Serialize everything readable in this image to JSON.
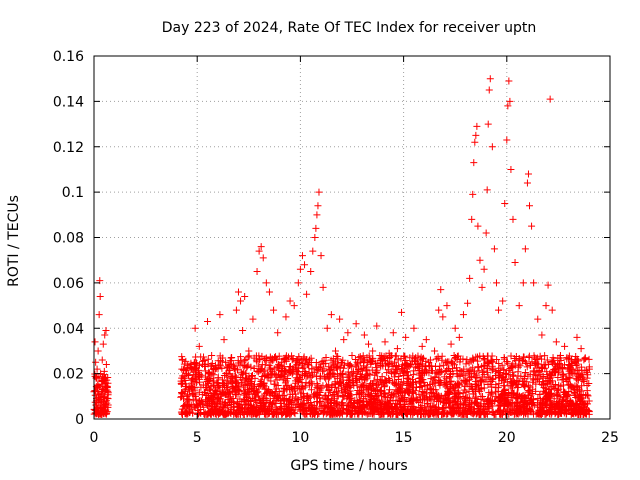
{
  "chart_data": {
    "type": "scatter",
    "title": "Day 223 of 2024, Rate Of TEC Index for receiver uptn",
    "xlabel": "GPS time / hours",
    "ylabel": "ROTI / TECUs",
    "xlim": [
      0,
      25
    ],
    "ylim": [
      0,
      0.16
    ],
    "xticks": [
      0,
      5,
      10,
      15,
      20,
      25
    ],
    "yticks": [
      0,
      0.02,
      0.04,
      0.06,
      0.08,
      0.1,
      0.12,
      0.14,
      0.16
    ],
    "xtick_labels": [
      "0",
      "5",
      "10",
      "15",
      "20",
      "25"
    ],
    "ytick_labels": [
      "0",
      "0.02",
      "0.04",
      "0.06",
      "0.08",
      "0.1",
      "0.12",
      "0.14",
      "0.16"
    ],
    "grid": true,
    "marker": "+",
    "marker_color": "#ff0000",
    "series": [
      {
        "name": "ROTI",
        "points": [
          [
            0.0,
            0.012
          ],
          [
            0.05,
            0.034
          ],
          [
            0.08,
            0.025
          ],
          [
            0.1,
            0.018
          ],
          [
            0.12,
            0.009
          ],
          [
            0.15,
            0.022
          ],
          [
            0.18,
            0.015
          ],
          [
            0.2,
            0.03
          ],
          [
            0.22,
            0.011
          ],
          [
            0.25,
            0.046
          ],
          [
            0.28,
            0.061
          ],
          [
            0.3,
            0.054
          ],
          [
            0.32,
            0.02
          ],
          [
            0.35,
            0.008
          ],
          [
            0.38,
            0.017
          ],
          [
            0.4,
            0.026
          ],
          [
            0.42,
            0.013
          ],
          [
            0.45,
            0.033
          ],
          [
            0.48,
            0.01
          ],
          [
            0.5,
            0.021
          ],
          [
            0.52,
            0.037
          ],
          [
            0.55,
            0.016
          ],
          [
            0.58,
            0.039
          ],
          [
            0.6,
            0.024
          ],
          [
            0.62,
            0.007
          ],
          [
            0.65,
            0.014
          ],
          [
            0.68,
            0.009
          ],
          [
            4.3,
            0.019
          ],
          [
            4.5,
            0.008
          ],
          [
            4.7,
            0.024
          ],
          [
            4.9,
            0.04
          ],
          [
            5.1,
            0.032
          ],
          [
            5.3,
            0.015
          ],
          [
            5.5,
            0.043
          ],
          [
            5.7,
            0.028
          ],
          [
            5.9,
            0.012
          ],
          [
            6.1,
            0.046
          ],
          [
            6.3,
            0.035
          ],
          [
            6.5,
            0.02
          ],
          [
            6.7,
            0.014
          ],
          [
            6.9,
            0.048
          ],
          [
            7.0,
            0.056
          ],
          [
            7.1,
            0.052
          ],
          [
            7.2,
            0.039
          ],
          [
            7.3,
            0.054
          ],
          [
            7.5,
            0.03
          ],
          [
            7.7,
            0.044
          ],
          [
            7.9,
            0.065
          ],
          [
            8.0,
            0.074
          ],
          [
            8.1,
            0.076
          ],
          [
            8.2,
            0.071
          ],
          [
            8.35,
            0.06
          ],
          [
            8.5,
            0.056
          ],
          [
            8.7,
            0.048
          ],
          [
            8.9,
            0.038
          ],
          [
            9.1,
            0.025
          ],
          [
            9.3,
            0.045
          ],
          [
            9.5,
            0.052
          ],
          [
            9.7,
            0.05
          ],
          [
            9.9,
            0.06
          ],
          [
            10.0,
            0.066
          ],
          [
            10.1,
            0.072
          ],
          [
            10.2,
            0.068
          ],
          [
            10.3,
            0.055
          ],
          [
            10.5,
            0.065
          ],
          [
            10.6,
            0.074
          ],
          [
            10.7,
            0.08
          ],
          [
            10.75,
            0.084
          ],
          [
            10.8,
            0.09
          ],
          [
            10.85,
            0.094
          ],
          [
            10.9,
            0.1
          ],
          [
            11.0,
            0.072
          ],
          [
            11.1,
            0.058
          ],
          [
            11.3,
            0.04
          ],
          [
            11.5,
            0.046
          ],
          [
            11.7,
            0.03
          ],
          [
            11.9,
            0.044
          ],
          [
            12.1,
            0.035
          ],
          [
            12.3,
            0.038
          ],
          [
            12.5,
            0.028
          ],
          [
            12.7,
            0.042
          ],
          [
            12.9,
            0.025
          ],
          [
            13.1,
            0.037
          ],
          [
            13.3,
            0.033
          ],
          [
            13.5,
            0.03
          ],
          [
            13.7,
            0.041
          ],
          [
            13.9,
            0.026
          ],
          [
            14.1,
            0.034
          ],
          [
            14.3,
            0.029
          ],
          [
            14.5,
            0.038
          ],
          [
            14.7,
            0.031
          ],
          [
            14.9,
            0.047
          ],
          [
            15.1,
            0.036
          ],
          [
            15.3,
            0.027
          ],
          [
            15.5,
            0.04
          ],
          [
            15.7,
            0.024
          ],
          [
            15.9,
            0.032
          ],
          [
            16.1,
            0.035
          ],
          [
            16.3,
            0.026
          ],
          [
            16.5,
            0.03
          ],
          [
            16.7,
            0.048
          ],
          [
            16.8,
            0.057
          ],
          [
            16.9,
            0.045
          ],
          [
            17.1,
            0.05
          ],
          [
            17.3,
            0.033
          ],
          [
            17.5,
            0.04
          ],
          [
            17.7,
            0.036
          ],
          [
            17.9,
            0.046
          ],
          [
            18.1,
            0.051
          ],
          [
            18.2,
            0.062
          ],
          [
            18.3,
            0.088
          ],
          [
            18.35,
            0.099
          ],
          [
            18.4,
            0.113
          ],
          [
            18.45,
            0.122
          ],
          [
            18.5,
            0.125
          ],
          [
            18.55,
            0.129
          ],
          [
            18.6,
            0.085
          ],
          [
            18.7,
            0.07
          ],
          [
            18.8,
            0.058
          ],
          [
            18.9,
            0.066
          ],
          [
            19.0,
            0.082
          ],
          [
            19.05,
            0.101
          ],
          [
            19.1,
            0.13
          ],
          [
            19.15,
            0.145
          ],
          [
            19.2,
            0.15
          ],
          [
            19.3,
            0.12
          ],
          [
            19.4,
            0.075
          ],
          [
            19.5,
            0.06
          ],
          [
            19.6,
            0.048
          ],
          [
            19.8,
            0.052
          ],
          [
            19.9,
            0.095
          ],
          [
            20.0,
            0.123
          ],
          [
            20.05,
            0.138
          ],
          [
            20.1,
            0.149
          ],
          [
            20.15,
            0.14
          ],
          [
            20.2,
            0.11
          ],
          [
            20.3,
            0.088
          ],
          [
            20.4,
            0.069
          ],
          [
            20.6,
            0.05
          ],
          [
            20.8,
            0.06
          ],
          [
            20.9,
            0.075
          ],
          [
            21.0,
            0.104
          ],
          [
            21.05,
            0.108
          ],
          [
            21.1,
            0.094
          ],
          [
            21.2,
            0.085
          ],
          [
            21.3,
            0.06
          ],
          [
            21.5,
            0.044
          ],
          [
            21.7,
            0.037
          ],
          [
            21.9,
            0.05
          ],
          [
            22.0,
            0.059
          ],
          [
            22.1,
            0.141
          ],
          [
            22.2,
            0.048
          ],
          [
            22.4,
            0.034
          ],
          [
            22.6,
            0.028
          ],
          [
            22.8,
            0.032
          ],
          [
            23.0,
            0.024
          ],
          [
            23.2,
            0.022
          ],
          [
            23.4,
            0.036
          ],
          [
            23.6,
            0.031
          ],
          [
            23.8,
            0.027
          ],
          [
            24.0,
            0.023
          ]
        ]
      }
    ],
    "dense_band": {
      "segments": [
        {
          "x_start": 0.0,
          "x_end": 0.7,
          "y_min": 0.002,
          "y_max": 0.02
        },
        {
          "x_start": 4.2,
          "x_end": 24.0,
          "y_min": 0.002,
          "y_max": 0.028
        }
      ],
      "approx_count": 3200
    }
  }
}
